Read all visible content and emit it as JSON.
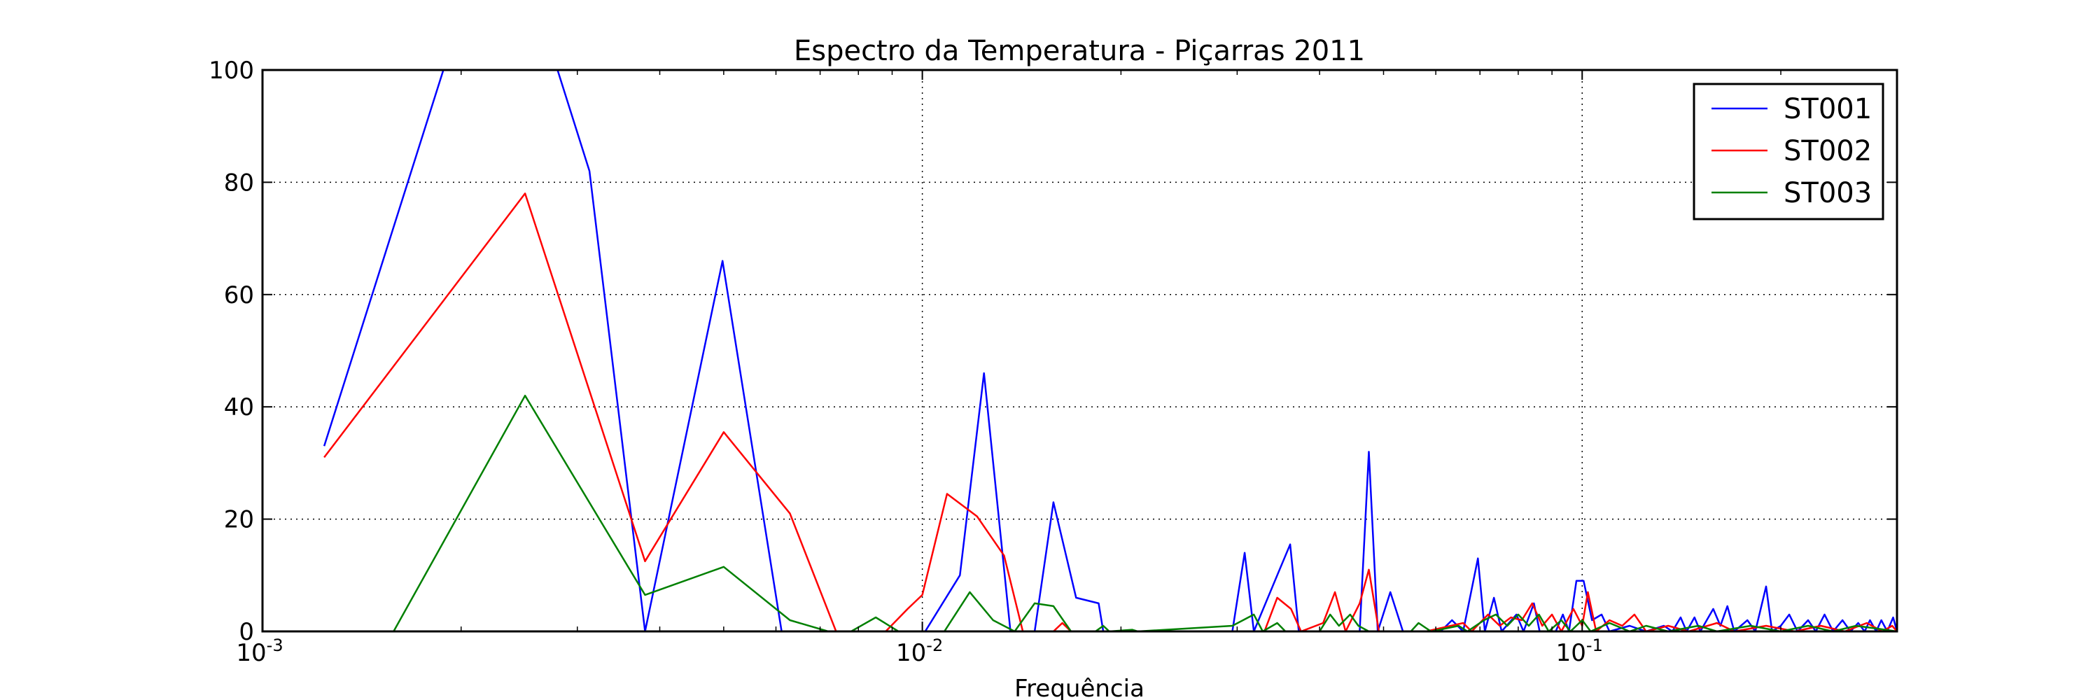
{
  "chart_data": {
    "type": "line",
    "title": "Espectro da Temperatura - Piçarras 2011",
    "xlabel": "Frequência",
    "ylabel": "",
    "xscale": "log",
    "xlim": [
      0.001,
      0.3
    ],
    "ylim": [
      0,
      100
    ],
    "grid": true,
    "legend_position": "top-right",
    "x_tick_labels": [
      {
        "value": 0.001,
        "base": "10",
        "exp": "-3"
      },
      {
        "value": 0.01,
        "base": "10",
        "exp": "-2"
      },
      {
        "value": 0.1,
        "base": "10",
        "exp": "-1"
      }
    ],
    "y_ticks": [
      0,
      20,
      40,
      60,
      80,
      100
    ],
    "y_tick_labels": [
      "0",
      "20",
      "40",
      "60",
      "80",
      "100"
    ],
    "series": [
      {
        "name": "ST001",
        "color": "#0000ff",
        "points": [
          [
            0.00124,
            33
          ],
          [
            0.00188,
            100
          ],
          [
            0.0028,
            100
          ],
          [
            0.00313,
            82
          ],
          [
            0.0038,
            0
          ],
          [
            0.00498,
            66
          ],
          [
            0.00612,
            0
          ],
          [
            0.0101,
            0
          ],
          [
            0.0114,
            10
          ],
          [
            0.0124,
            46
          ],
          [
            0.0136,
            0
          ],
          [
            0.0148,
            0
          ],
          [
            0.0158,
            23
          ],
          [
            0.0171,
            6
          ],
          [
            0.0185,
            5
          ],
          [
            0.0188,
            0
          ],
          [
            0.0295,
            0
          ],
          [
            0.0308,
            14
          ],
          [
            0.0318,
            0
          ],
          [
            0.0345,
            10
          ],
          [
            0.0361,
            15.5
          ],
          [
            0.0372,
            0
          ],
          [
            0.0434,
            0
          ],
          [
            0.046,
            0
          ],
          [
            0.0475,
            32
          ],
          [
            0.049,
            0
          ],
          [
            0.0512,
            7
          ],
          [
            0.0535,
            0
          ],
          [
            0.061,
            0
          ],
          [
            0.0635,
            2
          ],
          [
            0.066,
            0
          ],
          [
            0.0695,
            13
          ],
          [
            0.0712,
            0
          ],
          [
            0.0735,
            6
          ],
          [
            0.0755,
            0
          ],
          [
            0.0795,
            3
          ],
          [
            0.0815,
            0
          ],
          [
            0.0845,
            5
          ],
          [
            0.0862,
            0
          ],
          [
            0.0912,
            0
          ],
          [
            0.0935,
            3
          ],
          [
            0.0955,
            0
          ],
          [
            0.098,
            9
          ],
          [
            0.1005,
            9
          ],
          [
            0.1035,
            2
          ],
          [
            0.107,
            3
          ],
          [
            0.11,
            0
          ],
          [
            0.118,
            1
          ],
          [
            0.125,
            0
          ],
          [
            0.133,
            1
          ],
          [
            0.137,
            0
          ],
          [
            0.141,
            2.5
          ],
          [
            0.144,
            0
          ],
          [
            0.148,
            2.5
          ],
          [
            0.151,
            0
          ],
          [
            0.158,
            4
          ],
          [
            0.162,
            1
          ],
          [
            0.166,
            4.5
          ],
          [
            0.17,
            0
          ],
          [
            0.178,
            2
          ],
          [
            0.183,
            0
          ],
          [
            0.19,
            8
          ],
          [
            0.194,
            0
          ],
          [
            0.2,
            1
          ],
          [
            0.206,
            3
          ],
          [
            0.212,
            0
          ],
          [
            0.22,
            2
          ],
          [
            0.226,
            0
          ],
          [
            0.233,
            3
          ],
          [
            0.24,
            0
          ],
          [
            0.248,
            2
          ],
          [
            0.255,
            0
          ],
          [
            0.262,
            1.5
          ],
          [
            0.268,
            0
          ],
          [
            0.273,
            2
          ],
          [
            0.279,
            0
          ],
          [
            0.284,
            2
          ],
          [
            0.29,
            0
          ],
          [
            0.296,
            2.5
          ],
          [
            0.3,
            0
          ]
        ]
      },
      {
        "name": "ST002",
        "color": "#ff0000",
        "points": [
          [
            0.00124,
            31
          ],
          [
            0.0025,
            78
          ],
          [
            0.0038,
            12.5
          ],
          [
            0.005,
            35.5
          ],
          [
            0.0063,
            21
          ],
          [
            0.0074,
            0
          ],
          [
            0.0088,
            0
          ],
          [
            0.0095,
            4
          ],
          [
            0.01,
            6.5
          ],
          [
            0.0109,
            24.5
          ],
          [
            0.0121,
            20.5
          ],
          [
            0.0133,
            13.5
          ],
          [
            0.0142,
            0
          ],
          [
            0.0158,
            0
          ],
          [
            0.0163,
            1.5
          ],
          [
            0.0168,
            0
          ],
          [
            0.033,
            0
          ],
          [
            0.0345,
            6
          ],
          [
            0.0362,
            4
          ],
          [
            0.0375,
            0
          ],
          [
            0.0405,
            1.5
          ],
          [
            0.0422,
            7
          ],
          [
            0.0438,
            0
          ],
          [
            0.046,
            5
          ],
          [
            0.0475,
            11
          ],
          [
            0.0492,
            0
          ],
          [
            0.058,
            0
          ],
          [
            0.066,
            1.5
          ],
          [
            0.068,
            0
          ],
          [
            0.072,
            3
          ],
          [
            0.075,
            1
          ],
          [
            0.078,
            2.5
          ],
          [
            0.081,
            2
          ],
          [
            0.084,
            5
          ],
          [
            0.087,
            1
          ],
          [
            0.09,
            3
          ],
          [
            0.093,
            0
          ],
          [
            0.097,
            4
          ],
          [
            0.1,
            1
          ],
          [
            0.102,
            7
          ],
          [
            0.105,
            0
          ],
          [
            0.11,
            2
          ],
          [
            0.115,
            1
          ],
          [
            0.12,
            3
          ],
          [
            0.125,
            0
          ],
          [
            0.135,
            1
          ],
          [
            0.145,
            0
          ],
          [
            0.16,
            1.5
          ],
          [
            0.17,
            0
          ],
          [
            0.19,
            1
          ],
          [
            0.21,
            0
          ],
          [
            0.23,
            1
          ],
          [
            0.25,
            0
          ],
          [
            0.27,
            1.5
          ],
          [
            0.285,
            0
          ],
          [
            0.295,
            1
          ],
          [
            0.3,
            0
          ]
        ]
      },
      {
        "name": "ST003",
        "color": "#008000",
        "points": [
          [
            0.00158,
            0
          ],
          [
            0.0025,
            42
          ],
          [
            0.0038,
            6.5
          ],
          [
            0.005,
            11.5
          ],
          [
            0.0063,
            2
          ],
          [
            0.0072,
            0
          ],
          [
            0.0078,
            0
          ],
          [
            0.0085,
            2.5
          ],
          [
            0.0092,
            0
          ],
          [
            0.0108,
            0
          ],
          [
            0.0118,
            7
          ],
          [
            0.0128,
            2
          ],
          [
            0.0138,
            0
          ],
          [
            0.0148,
            5
          ],
          [
            0.0158,
            4.5
          ],
          [
            0.0168,
            0
          ],
          [
            0.0183,
            0
          ],
          [
            0.0188,
            1
          ],
          [
            0.0192,
            0
          ],
          [
            0.0208,
            0.3
          ],
          [
            0.0212,
            0
          ],
          [
            0.0295,
            1
          ],
          [
            0.0318,
            3
          ],
          [
            0.0328,
            0
          ],
          [
            0.0345,
            1.5
          ],
          [
            0.0355,
            0
          ],
          [
            0.04,
            0
          ],
          [
            0.0415,
            3
          ],
          [
            0.0428,
            1
          ],
          [
            0.0445,
            3
          ],
          [
            0.0458,
            1
          ],
          [
            0.0475,
            0
          ],
          [
            0.055,
            0
          ],
          [
            0.0565,
            1.5
          ],
          [
            0.059,
            0
          ],
          [
            0.065,
            1
          ],
          [
            0.067,
            0
          ],
          [
            0.071,
            2
          ],
          [
            0.074,
            3
          ],
          [
            0.077,
            1
          ],
          [
            0.08,
            3
          ],
          [
            0.083,
            1
          ],
          [
            0.086,
            3
          ],
          [
            0.089,
            0
          ],
          [
            0.093,
            2
          ],
          [
            0.096,
            0
          ],
          [
            0.1,
            2
          ],
          [
            0.103,
            0
          ],
          [
            0.11,
            1.5
          ],
          [
            0.118,
            0
          ],
          [
            0.125,
            1
          ],
          [
            0.135,
            0
          ],
          [
            0.15,
            1
          ],
          [
            0.16,
            0
          ],
          [
            0.18,
            1
          ],
          [
            0.2,
            0
          ],
          [
            0.22,
            1
          ],
          [
            0.24,
            0
          ],
          [
            0.26,
            1
          ],
          [
            0.28,
            0.5
          ],
          [
            0.3,
            0
          ]
        ]
      }
    ]
  }
}
